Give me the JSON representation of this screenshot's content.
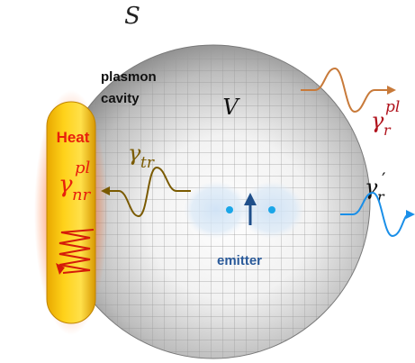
{
  "labels": {
    "surface": "S",
    "volume": "V",
    "plasmon_line1": "plasmon",
    "plasmon_line2": "cavity",
    "heat": "Heat",
    "emitter": "emitter"
  },
  "rates": {
    "nonradiative_plasmon": {
      "symbol": "γ",
      "sub": "nr",
      "sup": "pl"
    },
    "transfer": {
      "symbol": "γ",
      "sub": "tr"
    },
    "radiative_plasmon": {
      "symbol": "γ",
      "sub": "r",
      "sup": "pl"
    },
    "radiative_emitter": {
      "symbol": "γ",
      "sub": "r",
      "prime": "′"
    }
  },
  "colors": {
    "nanorod_fill": "#f4c400",
    "heat_text": "#e8200c",
    "heat_wave": "#d41a0a",
    "transfer_wave": "#7a5a00",
    "plasmon_wave": "#c87a3a",
    "plasmon_rate_text": "#b0121c",
    "emitter_wave": "#1a8fe8",
    "emitter_text": "#2a5a9a",
    "dipole_arrow": "#1f4f8a"
  }
}
